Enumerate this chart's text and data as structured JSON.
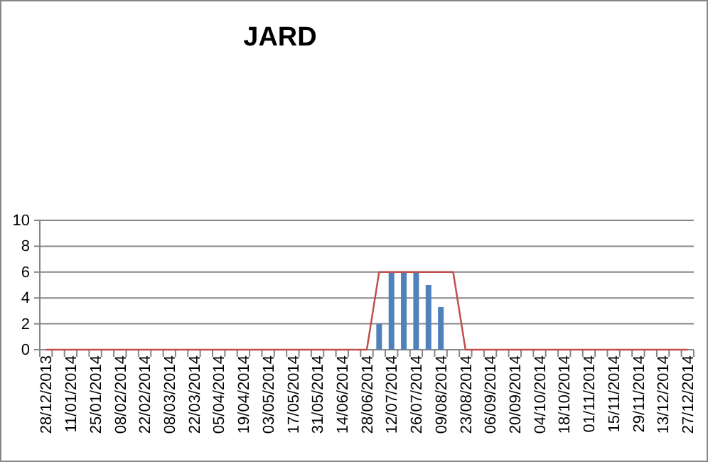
{
  "chart_data": {
    "type": "bar",
    "title": "JARD",
    "categories": [
      "28/12/2013",
      null,
      "11/01/2014",
      null,
      "25/01/2014",
      null,
      "08/02/2014",
      null,
      "22/02/2014",
      null,
      "08/03/2014",
      null,
      "22/03/2014",
      null,
      "05/04/2014",
      null,
      "19/04/2014",
      null,
      "03/05/2014",
      null,
      "17/05/2014",
      null,
      "31/05/2014",
      null,
      "14/06/2014",
      null,
      "28/06/2014",
      null,
      "12/07/2014",
      null,
      "26/07/2014",
      null,
      "09/08/2014",
      null,
      "23/08/2014",
      null,
      "06/09/2014",
      null,
      "20/09/2014",
      null,
      "04/10/2014",
      null,
      "18/10/2014",
      null,
      "01/11/2014",
      null,
      "15/11/2014",
      null,
      "29/11/2014",
      null,
      "13/12/2014",
      null,
      "27/12/2014"
    ],
    "series": [
      {
        "color": "#4f81bd",
        "values": [
          null,
          null,
          null,
          null,
          null,
          null,
          null,
          null,
          null,
          null,
          null,
          null,
          null,
          null,
          null,
          null,
          null,
          null,
          null,
          null,
          null,
          null,
          null,
          null,
          null,
          null,
          null,
          2,
          6,
          6,
          6,
          5,
          3.3,
          null,
          null,
          null,
          null,
          null,
          null,
          null,
          null,
          null,
          null,
          null,
          null,
          null,
          null,
          null,
          null,
          null,
          null,
          null,
          null
        ]
      },
      {
        "type": "line",
        "color": "#c0504d",
        "values": [
          0,
          0,
          0,
          0,
          0,
          0,
          0,
          0,
          0,
          0,
          0,
          0,
          0,
          0,
          0,
          0,
          0,
          0,
          0,
          0,
          0,
          0,
          0,
          0,
          0,
          0,
          0,
          6,
          6,
          6,
          6,
          6,
          6,
          6,
          0,
          0,
          0,
          0,
          0,
          0,
          0,
          0,
          0,
          0,
          0,
          0,
          0,
          0,
          0,
          0,
          0,
          0,
          0
        ]
      }
    ],
    "ylim": [
      0,
      10
    ],
    "yticks": [
      0,
      2,
      4,
      6,
      8,
      10
    ],
    "grid": "y"
  }
}
